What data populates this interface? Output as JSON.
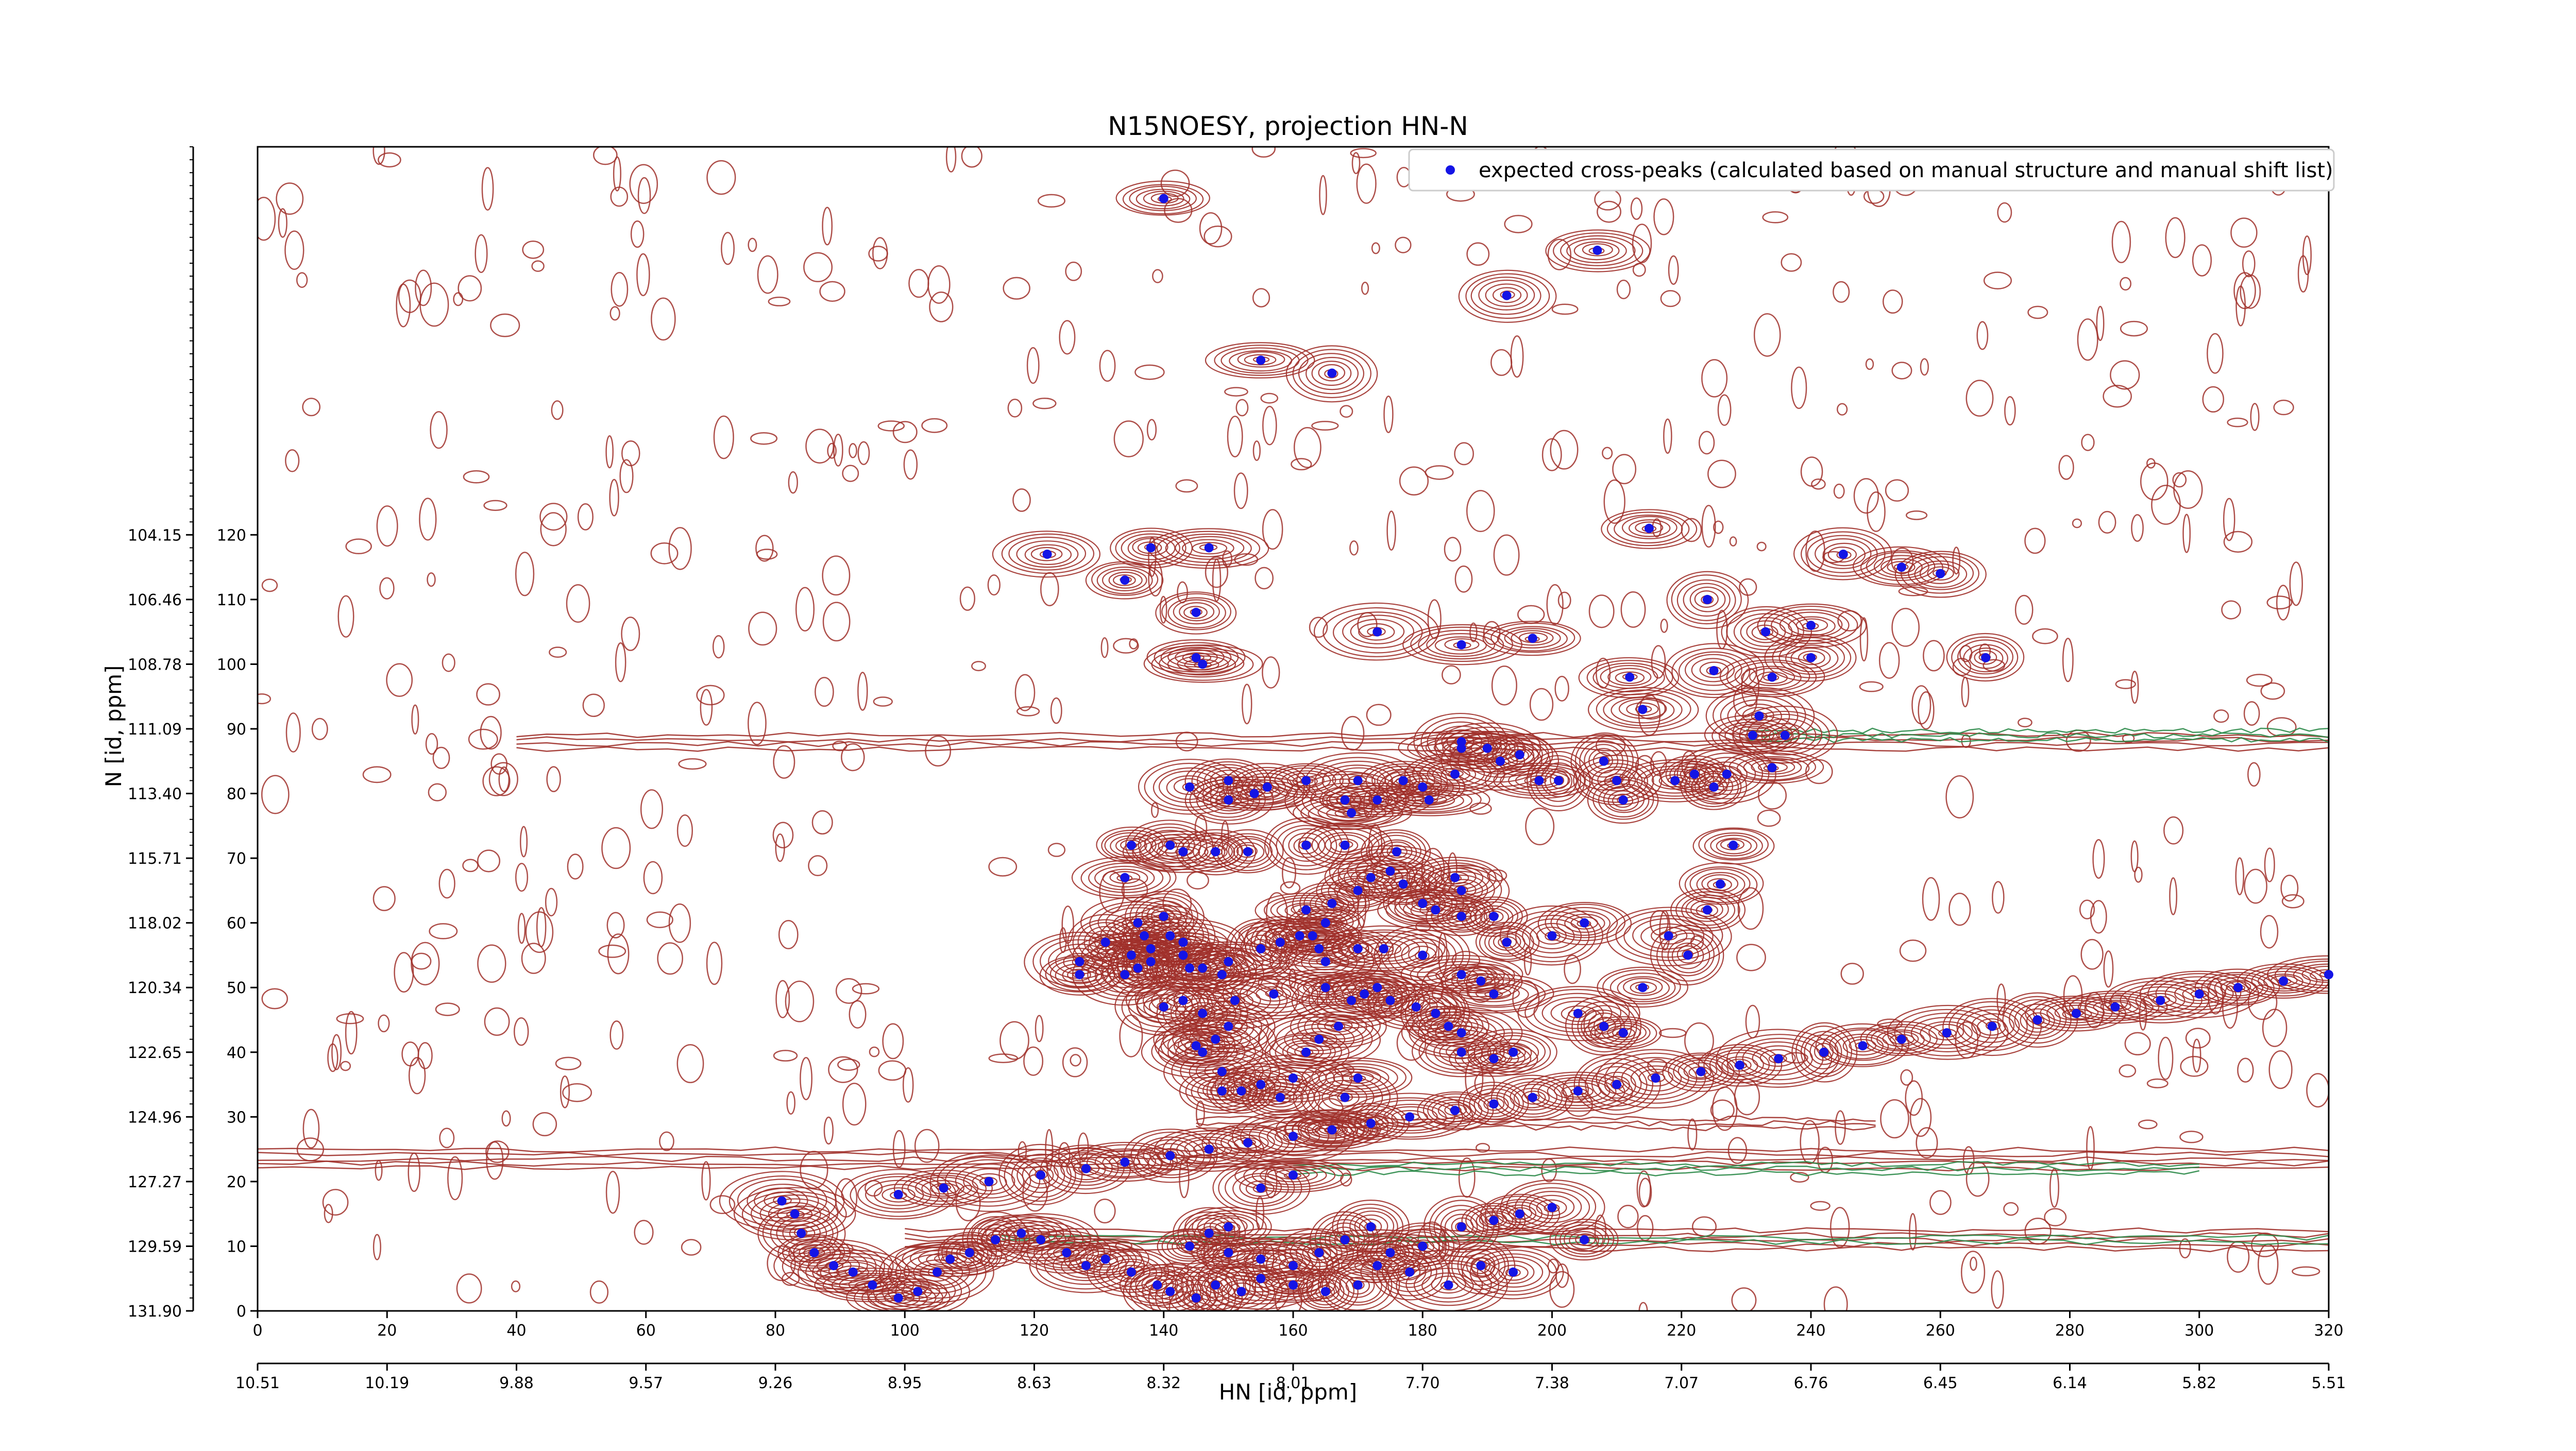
{
  "chart_data": {
    "type": "scatter",
    "title": "N15NOESY, projection HN-N",
    "xlabel": "HN [id, ppm]",
    "ylabel": "N [id, ppm]",
    "x_index_range": [
      0,
      320
    ],
    "y_index_range": [
      0,
      180
    ],
    "x_ticks": [
      "0",
      "20",
      "40",
      "60",
      "80",
      "100",
      "120",
      "140",
      "160",
      "180",
      "200",
      "220",
      "240",
      "260",
      "280",
      "300",
      "320"
    ],
    "x_ppm_ticks": [
      "10.51",
      "10.19",
      "9.88",
      "9.57",
      "9.26",
      "8.95",
      "8.63",
      "8.32",
      "8.01",
      "7.70",
      "7.38",
      "7.07",
      "6.76",
      "6.45",
      "6.14",
      "5.82",
      "5.51"
    ],
    "y_ticks": [
      "0",
      "10",
      "20",
      "30",
      "40",
      "50",
      "60",
      "70",
      "80",
      "90",
      "100",
      "110",
      "120"
    ],
    "y_ppm_ticks": [
      "131.90",
      "129.59",
      "127.27",
      "124.96",
      "122.65",
      "120.34",
      "118.02",
      "115.71",
      "113.40",
      "111.09",
      "108.78",
      "106.46",
      "104.15"
    ],
    "legend": {
      "position": "top-right",
      "label": "expected cross-peaks (calculated based on manual structure and manual shift list)",
      "marker_color": "#0000ff"
    },
    "contour_colors": {
      "positive": "#a0302a",
      "negative": "#2e8b4a"
    },
    "marker_color": "#1414e6",
    "peaks": [
      [
        140,
        172
      ],
      [
        155,
        147
      ],
      [
        166,
        145
      ],
      [
        193,
        157
      ],
      [
        207,
        164
      ],
      [
        215,
        121
      ],
      [
        224,
        110
      ],
      [
        240,
        106
      ],
      [
        245,
        117
      ],
      [
        254,
        115
      ],
      [
        260,
        114
      ],
      [
        267,
        101
      ],
      [
        122,
        117
      ],
      [
        138,
        118
      ],
      [
        147,
        118
      ],
      [
        146,
        100
      ],
      [
        145,
        101
      ],
      [
        134,
        113
      ],
      [
        145,
        108
      ],
      [
        173,
        105
      ],
      [
        186,
        103
      ],
      [
        197,
        104
      ],
      [
        212,
        98
      ],
      [
        214,
        93
      ],
      [
        225,
        99
      ],
      [
        233,
        105
      ],
      [
        234,
        98
      ],
      [
        240,
        101
      ],
      [
        232,
        92
      ],
      [
        231,
        89
      ],
      [
        227,
        83
      ],
      [
        236,
        89
      ],
      [
        210,
        82
      ],
      [
        201,
        82
      ],
      [
        208,
        85
      ],
      [
        192,
        85
      ],
      [
        190,
        87
      ],
      [
        185,
        83
      ],
      [
        186,
        87
      ],
      [
        180,
        81
      ],
      [
        170,
        82
      ],
      [
        162,
        82
      ],
      [
        156,
        81
      ],
      [
        150,
        82
      ],
      [
        144,
        81
      ],
      [
        150,
        79
      ],
      [
        154,
        80
      ],
      [
        168,
        79
      ],
      [
        169,
        77
      ],
      [
        173,
        79
      ],
      [
        177,
        82
      ],
      [
        186,
        88
      ],
      [
        195,
        86
      ],
      [
        198,
        82
      ],
      [
        211,
        79
      ],
      [
        219,
        82
      ],
      [
        225,
        81
      ],
      [
        234,
        84
      ],
      [
        222,
        83
      ],
      [
        181,
        79
      ],
      [
        176,
        71
      ],
      [
        185,
        67
      ],
      [
        186,
        65
      ],
      [
        168,
        72
      ],
      [
        162,
        72
      ],
      [
        153,
        71
      ],
      [
        148,
        71
      ],
      [
        143,
        71
      ],
      [
        141,
        72
      ],
      [
        135,
        72
      ],
      [
        134,
        67
      ],
      [
        136,
        60
      ],
      [
        140,
        61
      ],
      [
        137,
        58
      ],
      [
        138,
        56
      ],
      [
        135,
        55
      ],
      [
        138,
        54
      ],
      [
        136,
        53
      ],
      [
        134,
        52
      ],
      [
        127,
        52
      ],
      [
        127,
        54
      ],
      [
        131,
        57
      ],
      [
        141,
        58
      ],
      [
        143,
        57
      ],
      [
        143,
        55
      ],
      [
        144,
        53
      ],
      [
        146,
        53
      ],
      [
        149,
        52
      ],
      [
        150,
        54
      ],
      [
        155,
        56
      ],
      [
        158,
        57
      ],
      [
        161,
        58
      ],
      [
        162,
        62
      ],
      [
        163,
        58
      ],
      [
        165,
        60
      ],
      [
        166,
        63
      ],
      [
        170,
        65
      ],
      [
        172,
        67
      ],
      [
        175,
        68
      ],
      [
        177,
        66
      ],
      [
        180,
        63
      ],
      [
        182,
        62
      ],
      [
        186,
        61
      ],
      [
        191,
        61
      ],
      [
        193,
        57
      ],
      [
        200,
        58
      ],
      [
        205,
        60
      ],
      [
        218,
        58
      ],
      [
        224,
        62
      ],
      [
        226,
        66
      ],
      [
        228,
        72
      ],
      [
        221,
        55
      ],
      [
        214,
        50
      ],
      [
        211,
        43
      ],
      [
        208,
        44
      ],
      [
        204,
        46
      ],
      [
        191,
        49
      ],
      [
        189,
        51
      ],
      [
        186,
        52
      ],
      [
        180,
        55
      ],
      [
        174,
        56
      ],
      [
        170,
        56
      ],
      [
        165,
        54
      ],
      [
        164,
        56
      ],
      [
        165,
        50
      ],
      [
        157,
        49
      ],
      [
        151,
        48
      ],
      [
        150,
        44
      ],
      [
        148,
        42
      ],
      [
        145,
        41
      ],
      [
        143,
        48
      ],
      [
        140,
        47
      ],
      [
        146,
        46
      ],
      [
        146,
        40
      ],
      [
        149,
        37
      ],
      [
        149,
        34
      ],
      [
        152,
        34
      ],
      [
        155,
        35
      ],
      [
        158,
        33
      ],
      [
        160,
        36
      ],
      [
        162,
        40
      ],
      [
        164,
        42
      ],
      [
        167,
        44
      ],
      [
        169,
        48
      ],
      [
        171,
        49
      ],
      [
        173,
        50
      ],
      [
        175,
        48
      ],
      [
        179,
        47
      ],
      [
        182,
        46
      ],
      [
        184,
        44
      ],
      [
        186,
        43
      ],
      [
        186,
        40
      ],
      [
        191,
        39
      ],
      [
        194,
        40
      ],
      [
        170,
        36
      ],
      [
        168,
        33
      ],
      [
        166,
        28
      ],
      [
        160,
        21
      ],
      [
        155,
        19
      ],
      [
        150,
        13
      ],
      [
        147,
        12
      ],
      [
        144,
        10
      ],
      [
        150,
        9
      ],
      [
        155,
        8
      ],
      [
        160,
        7
      ],
      [
        164,
        9
      ],
      [
        168,
        11
      ],
      [
        172,
        13
      ],
      [
        175,
        9
      ],
      [
        180,
        10
      ],
      [
        186,
        13
      ],
      [
        191,
        14
      ],
      [
        195,
        15
      ],
      [
        200,
        16
      ],
      [
        205,
        11
      ],
      [
        194,
        6
      ],
      [
        189,
        7
      ],
      [
        184,
        4
      ],
      [
        178,
        6
      ],
      [
        173,
        7
      ],
      [
        170,
        4
      ],
      [
        165,
        3
      ],
      [
        160,
        4
      ],
      [
        155,
        5
      ],
      [
        152,
        3
      ],
      [
        148,
        4
      ],
      [
        145,
        2
      ],
      [
        141,
        3
      ],
      [
        139,
        4
      ],
      [
        135,
        6
      ],
      [
        131,
        8
      ],
      [
        128,
        7
      ],
      [
        125,
        9
      ],
      [
        121,
        11
      ],
      [
        118,
        12
      ],
      [
        114,
        11
      ],
      [
        110,
        9
      ],
      [
        107,
        8
      ],
      [
        105,
        6
      ],
      [
        102,
        3
      ],
      [
        99,
        2
      ],
      [
        95,
        4
      ],
      [
        92,
        6
      ],
      [
        89,
        7
      ],
      [
        86,
        9
      ],
      [
        84,
        12
      ],
      [
        83,
        15
      ],
      [
        81,
        17
      ],
      [
        99,
        18
      ],
      [
        106,
        19
      ],
      [
        113,
        20
      ],
      [
        121,
        21
      ],
      [
        128,
        22
      ],
      [
        134,
        23
      ],
      [
        141,
        24
      ],
      [
        147,
        25
      ],
      [
        153,
        26
      ],
      [
        160,
        27
      ],
      [
        166,
        28
      ],
      [
        172,
        29
      ],
      [
        178,
        30
      ],
      [
        185,
        31
      ],
      [
        191,
        32
      ],
      [
        197,
        33
      ],
      [
        204,
        34
      ],
      [
        210,
        35
      ],
      [
        216,
        36
      ],
      [
        223,
        37
      ],
      [
        229,
        38
      ],
      [
        235,
        39
      ],
      [
        242,
        40
      ],
      [
        248,
        41
      ],
      [
        254,
        42
      ],
      [
        261,
        43
      ],
      [
        268,
        44
      ],
      [
        275,
        45
      ],
      [
        281,
        46
      ],
      [
        287,
        47
      ],
      [
        294,
        48
      ],
      [
        300,
        49
      ],
      [
        306,
        50
      ],
      [
        313,
        51
      ],
      [
        320,
        52
      ]
    ]
  }
}
